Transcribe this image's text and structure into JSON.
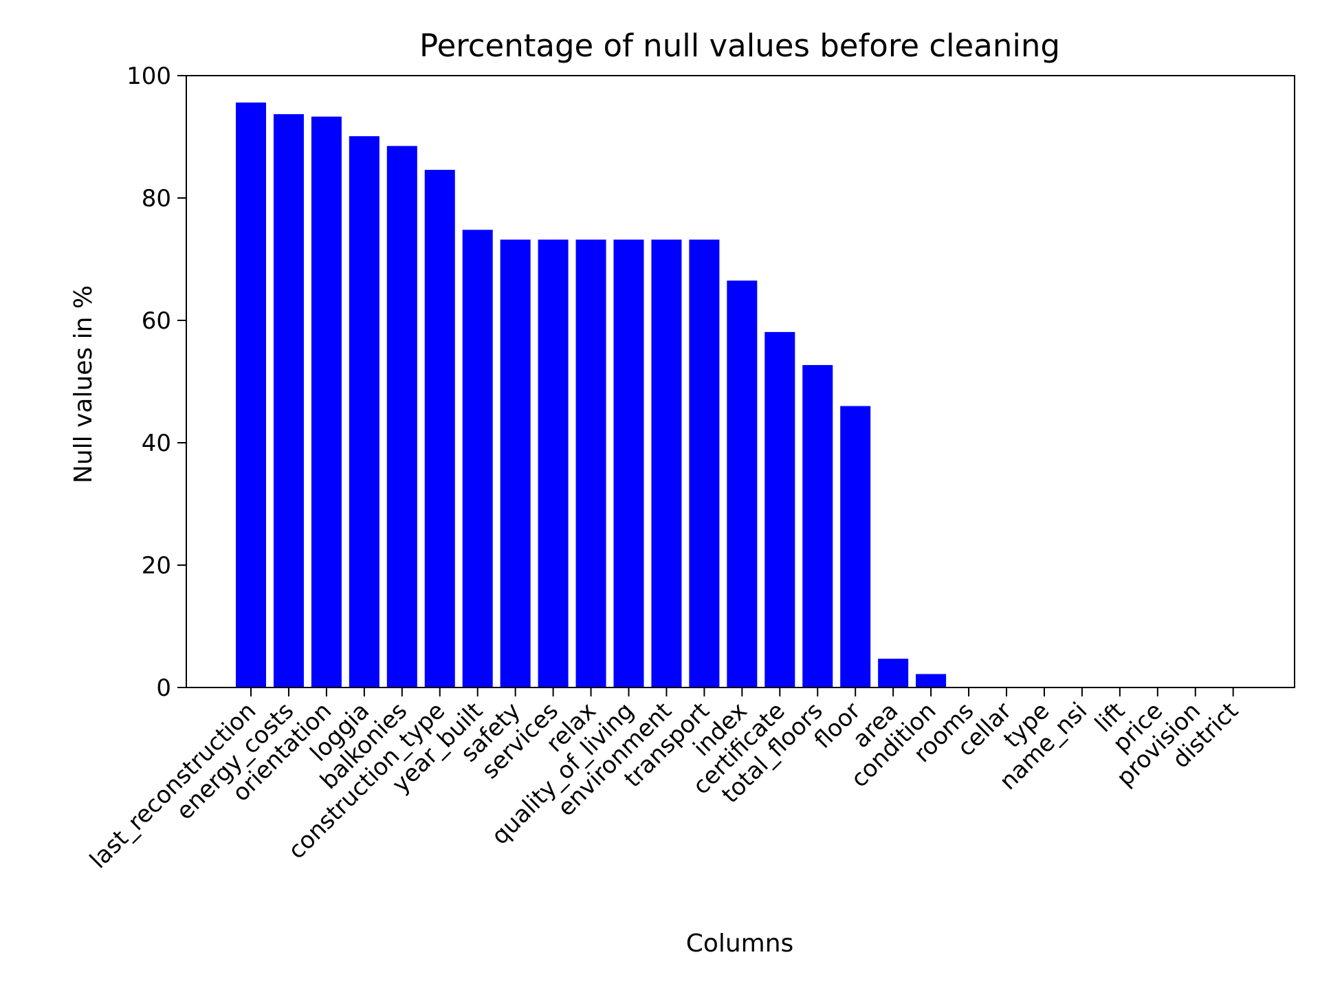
{
  "chart_data": {
    "type": "bar",
    "title": "Percentage of null values before cleaning",
    "xlabel": "Columns",
    "ylabel": "Null values in %",
    "ylim": [
      0,
      100
    ],
    "yticks": [
      0,
      20,
      40,
      60,
      80,
      100
    ],
    "grid": false,
    "legend": "none",
    "bar_color": "#0000ff",
    "categories": [
      "last_reconstruction",
      "energy_costs",
      "orientation",
      "loggia",
      "balkonies",
      "construction_type",
      "year_built",
      "safety",
      "services",
      "relax",
      "quality_of_living",
      "environment",
      "transport",
      "index",
      "certificate",
      "total_floors",
      "floor",
      "area",
      "condition",
      "rooms",
      "cellar",
      "type",
      "name_nsi",
      "lift",
      "price",
      "provision",
      "district"
    ],
    "values": [
      95.6,
      93.7,
      93.3,
      90.1,
      88.5,
      84.6,
      74.8,
      73.2,
      73.2,
      73.2,
      73.2,
      73.2,
      73.2,
      66.5,
      58.1,
      52.7,
      46.0,
      4.7,
      2.2,
      0,
      0,
      0,
      0,
      0,
      0,
      0,
      0
    ]
  }
}
